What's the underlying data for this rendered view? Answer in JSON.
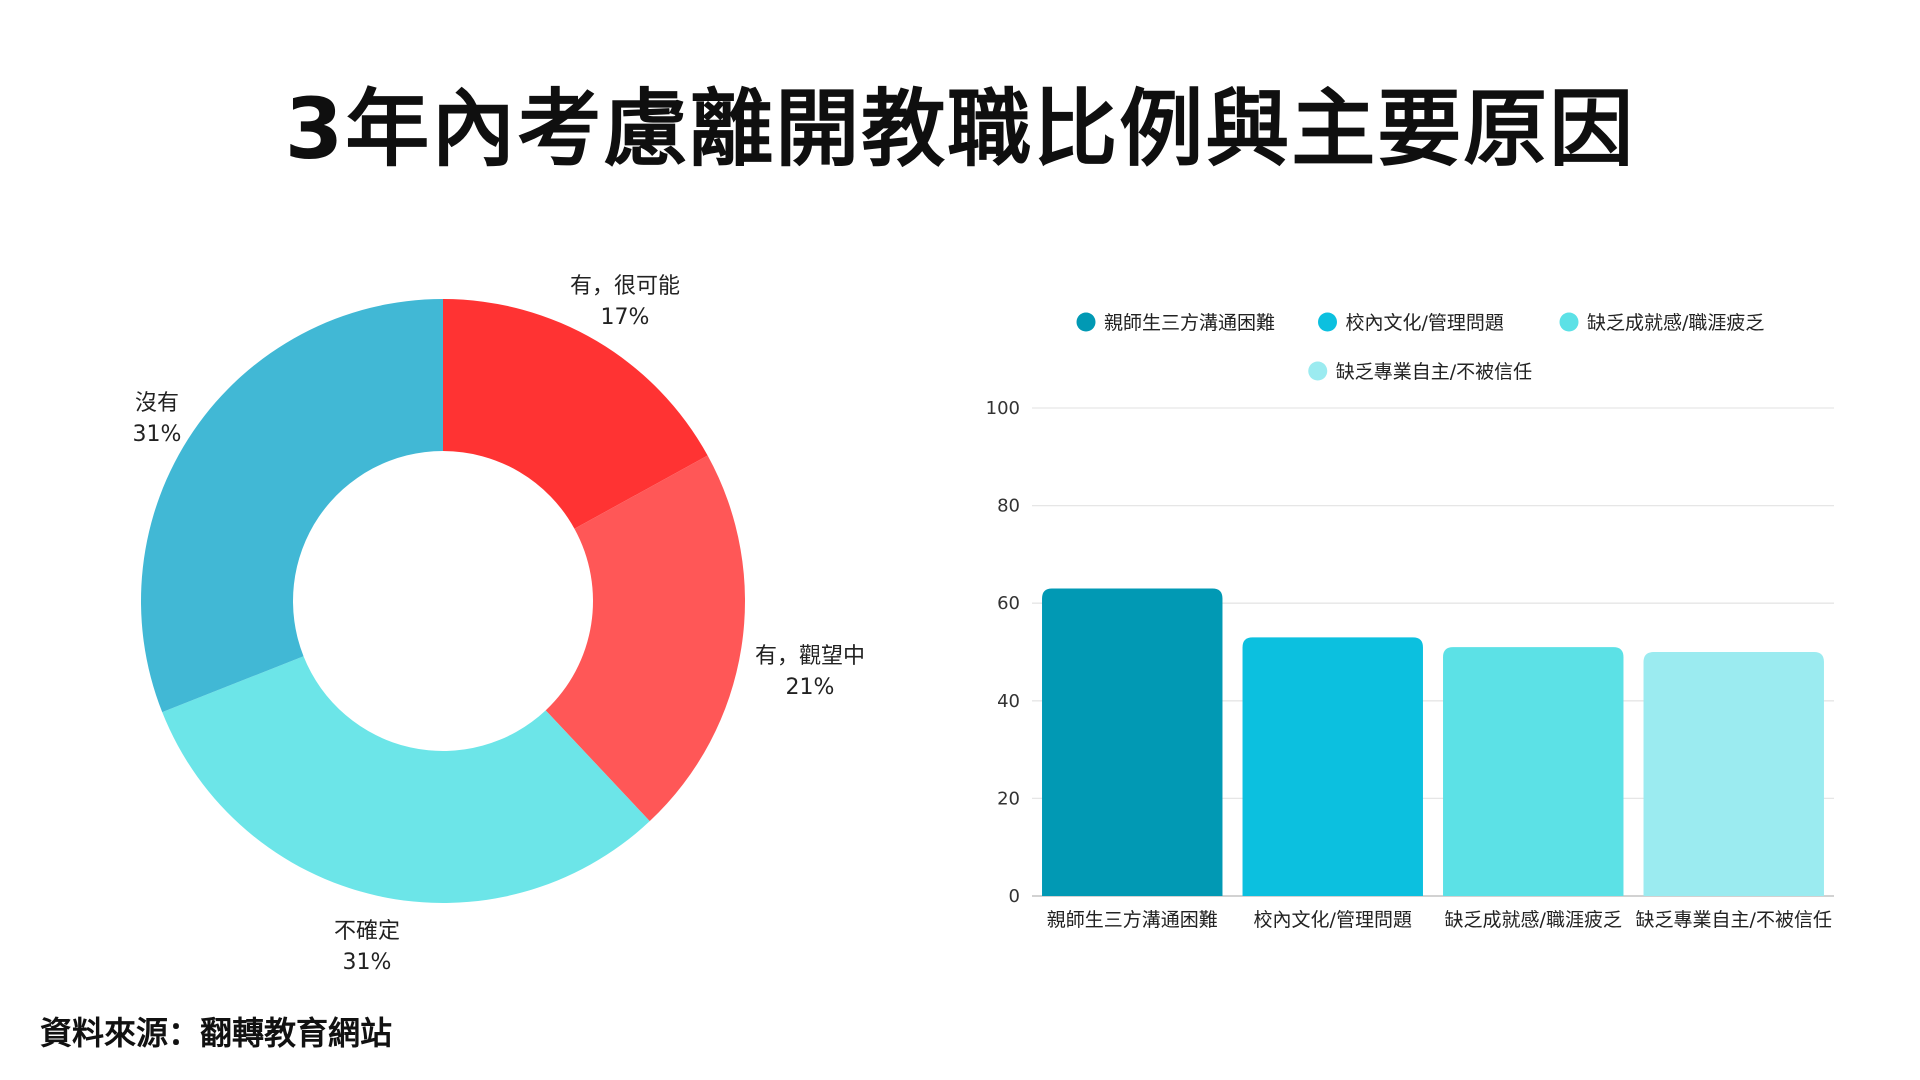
{
  "title": "3年內考慮離開教職比例與主要原因",
  "source": "資料來源：翻轉教育網站",
  "chart_data": [
    {
      "type": "pie",
      "donut": true,
      "labels": [
        "有，很可能",
        "有，觀望中",
        "不確定",
        "沒有"
      ],
      "values": [
        17,
        21,
        31,
        31
      ],
      "value_labels": [
        "17%",
        "21%",
        "31%",
        "31%"
      ],
      "colors": [
        "#ff3333",
        "#ff5757",
        "#6ce5e8",
        "#41b8d5"
      ]
    },
    {
      "type": "bar",
      "categories": [
        "親師生三方溝通困難",
        "校內文化/管理問題",
        "缺乏成就感/職涯疲乏",
        "缺乏專業自主/不被信任"
      ],
      "values": [
        63,
        53,
        51,
        50
      ],
      "colors": [
        "#0199b4",
        "#0cc0df",
        "#5ce1e6",
        "#9bebf0"
      ],
      "legend": [
        "親師生三方溝通困難",
        "校內文化/管理問題",
        "缺乏成就感/職涯疲乏",
        "缺乏專業自主/不被信任"
      ],
      "legend_position": "top",
      "ylim": [
        0,
        100
      ],
      "yticks": [
        "0",
        "20",
        "40",
        "60",
        "80",
        "100"
      ],
      "grid": true
    }
  ]
}
